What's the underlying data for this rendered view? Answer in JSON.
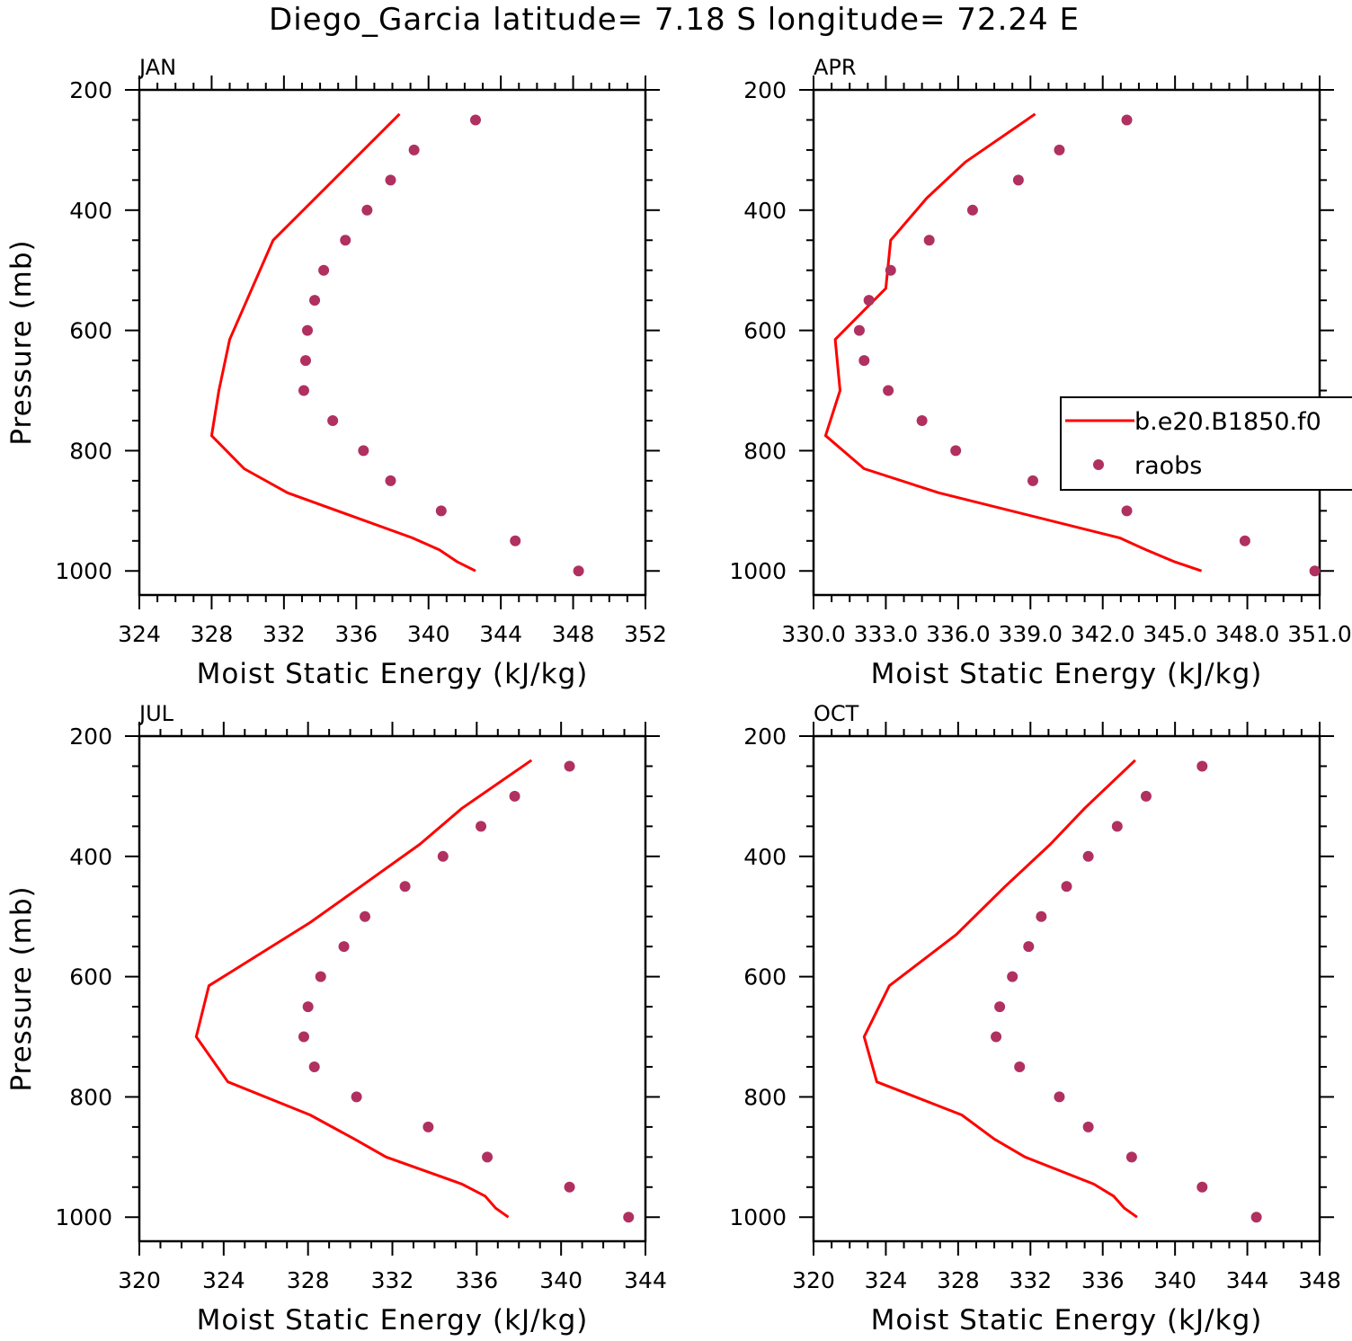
{
  "figure": {
    "title": "Diego_Garcia  latitude= 7.18 S longitude= 72.24 E"
  },
  "legend": {
    "model_label": "b.e20.B1850.f0",
    "obs_label": "raobs"
  },
  "colors": {
    "model_line": "#ff0000",
    "obs_markers": "#b03060",
    "axes": "#000000"
  },
  "chart_data": [
    {
      "type": "line",
      "panel_label": "JAN",
      "xlabel": "Moist Static Energy (kJ/kg)",
      "ylabel": "Pressure (mb)",
      "xlim": [
        324,
        352
      ],
      "ylim": [
        1000,
        200
      ],
      "xticks": [
        "324",
        "328",
        "332",
        "336",
        "340",
        "344",
        "348",
        "352"
      ],
      "yticks": [
        "200",
        "400",
        "600",
        "800",
        "1000"
      ],
      "series": [
        {
          "name": "b.e20.B1850.f0",
          "style": "line",
          "pressure": [
            1000,
            985,
            965,
            945,
            870,
            830,
            775,
            700,
            615,
            450,
            240
          ],
          "values": [
            342.6,
            341.6,
            340.6,
            339.1,
            332.2,
            329.8,
            328.0,
            328.4,
            329.0,
            331.4,
            338.4
          ]
        },
        {
          "name": "raobs",
          "style": "markers",
          "pressure": [
            250,
            300,
            350,
            400,
            450,
            500,
            550,
            600,
            650,
            700,
            750,
            800,
            850,
            900,
            950,
            1000
          ],
          "values": [
            342.6,
            339.2,
            337.9,
            336.6,
            335.4,
            334.2,
            333.7,
            333.3,
            333.2,
            333.1,
            334.7,
            336.4,
            337.9,
            340.7,
            344.8,
            348.3
          ]
        }
      ]
    },
    {
      "type": "line",
      "panel_label": "APR",
      "xlabel": "Moist Static Energy (kJ/kg)",
      "ylabel": "",
      "xlim": [
        330.0,
        351.0
      ],
      "ylim": [
        1000,
        200
      ],
      "xticks": [
        "330.0",
        "333.0",
        "336.0",
        "339.0",
        "342.0",
        "345.0",
        "348.0",
        "351.0"
      ],
      "yticks": [
        "200",
        "400",
        "600",
        "800",
        "1000"
      ],
      "series": [
        {
          "name": "b.e20.B1850.f0",
          "style": "line",
          "pressure": [
            1000,
            985,
            965,
            945,
            870,
            830,
            775,
            700,
            615,
            530,
            450,
            380,
            320,
            240
          ],
          "values": [
            346.1,
            345.0,
            343.8,
            342.7,
            335.2,
            332.1,
            330.5,
            331.1,
            330.9,
            333.0,
            333.2,
            334.7,
            336.3,
            339.2
          ]
        },
        {
          "name": "raobs",
          "style": "markers",
          "pressure": [
            250,
            300,
            350,
            400,
            450,
            500,
            550,
            600,
            650,
            700,
            750,
            800,
            850,
            900,
            950,
            1000
          ],
          "values": [
            343.0,
            340.2,
            338.5,
            336.6,
            334.8,
            333.2,
            332.3,
            331.9,
            332.1,
            333.1,
            334.5,
            335.9,
            339.1,
            343.0,
            347.9,
            350.8
          ]
        }
      ]
    },
    {
      "type": "line",
      "panel_label": "JUL",
      "xlabel": "Moist Static Energy (kJ/kg)",
      "ylabel": "Pressure (mb)",
      "xlim": [
        320,
        344
      ],
      "ylim": [
        1000,
        200
      ],
      "xticks": [
        "320",
        "324",
        "328",
        "332",
        "336",
        "340",
        "344"
      ],
      "yticks": [
        "200",
        "400",
        "600",
        "800",
        "1000"
      ],
      "series": [
        {
          "name": "b.e20.B1850.f0",
          "style": "line",
          "pressure": [
            1000,
            985,
            965,
            945,
            900,
            870,
            830,
            775,
            700,
            615,
            510,
            450,
            380,
            320,
            240
          ],
          "values": [
            337.5,
            336.9,
            336.4,
            335.3,
            331.7,
            330.2,
            328.1,
            324.2,
            322.7,
            323.3,
            328.1,
            330.5,
            333.3,
            335.3,
            338.6
          ]
        },
        {
          "name": "raobs",
          "style": "markers",
          "pressure": [
            250,
            300,
            350,
            400,
            450,
            500,
            550,
            600,
            650,
            700,
            750,
            800,
            850,
            900,
            950,
            1000
          ],
          "values": [
            340.4,
            337.8,
            336.2,
            334.4,
            332.6,
            330.7,
            329.7,
            328.6,
            328.0,
            327.8,
            328.3,
            330.3,
            333.7,
            336.5,
            340.4,
            343.2
          ]
        }
      ]
    },
    {
      "type": "line",
      "panel_label": "OCT",
      "xlabel": "Moist Static Energy (kJ/kg)",
      "ylabel": "",
      "xlim": [
        320,
        348
      ],
      "ylim": [
        1000,
        200
      ],
      "xticks": [
        "320",
        "324",
        "328",
        "332",
        "336",
        "340",
        "344",
        "348"
      ],
      "yticks": [
        "200",
        "400",
        "600",
        "800",
        "1000"
      ],
      "series": [
        {
          "name": "b.e20.B1850.f0",
          "style": "line",
          "pressure": [
            1000,
            985,
            965,
            945,
            900,
            870,
            830,
            775,
            700,
            615,
            530,
            450,
            380,
            320,
            240
          ],
          "values": [
            337.9,
            337.2,
            336.6,
            335.5,
            331.7,
            330.0,
            328.2,
            323.5,
            322.8,
            324.2,
            327.9,
            330.6,
            333.1,
            335.0,
            337.8
          ]
        },
        {
          "name": "raobs",
          "style": "markers",
          "pressure": [
            250,
            300,
            350,
            400,
            450,
            500,
            550,
            600,
            650,
            700,
            750,
            800,
            850,
            900,
            950,
            1000
          ],
          "values": [
            341.5,
            338.4,
            336.8,
            335.2,
            334.0,
            332.6,
            331.9,
            331.0,
            330.3,
            330.1,
            331.4,
            333.6,
            335.2,
            337.6,
            341.5,
            344.5
          ]
        }
      ]
    }
  ]
}
